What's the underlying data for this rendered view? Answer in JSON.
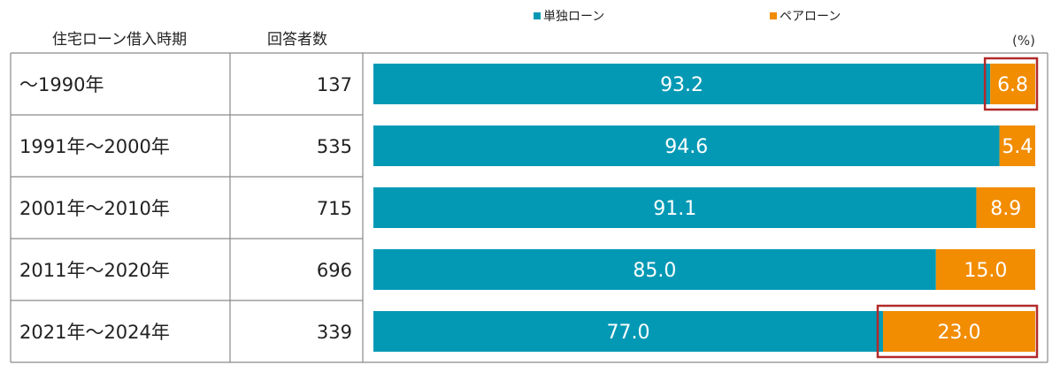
{
  "header": {
    "col_period": "住宅ローン借入時期",
    "col_respondents": "回答者数",
    "unit": "(%)"
  },
  "colors": {
    "single": "#0399b5",
    "pair": "#f28c00",
    "highlight": "#b22a2a",
    "grid": "#8a8a8a"
  },
  "chart_data": {
    "type": "bar",
    "orientation": "horizontal",
    "stacked": true,
    "percent": true,
    "categories": [
      "～1990年",
      "1991年～2000年",
      "2001年～2010年",
      "2011年～2020年",
      "2021年～2024年"
    ],
    "respondents": [
      "137",
      "535",
      "715",
      "696",
      "339"
    ],
    "series": [
      {
        "name": "単独ローン",
        "values": [
          93.2,
          94.6,
          91.1,
          85.0,
          77.0
        ]
      },
      {
        "name": "ペアローン",
        "values": [
          6.8,
          5.4,
          8.9,
          15.0,
          23.0
        ]
      }
    ],
    "value_labels": [
      [
        "93.2",
        "94.6",
        "91.1",
        "85.0",
        "77.0"
      ],
      [
        "6.8",
        "5.4",
        "8.9",
        "15.0",
        "23.0"
      ]
    ],
    "xlim": [
      0,
      100
    ],
    "legend": "top-center",
    "highlighted": [
      {
        "series": 1,
        "row": 0
      },
      {
        "series": 1,
        "row": 4
      }
    ]
  }
}
